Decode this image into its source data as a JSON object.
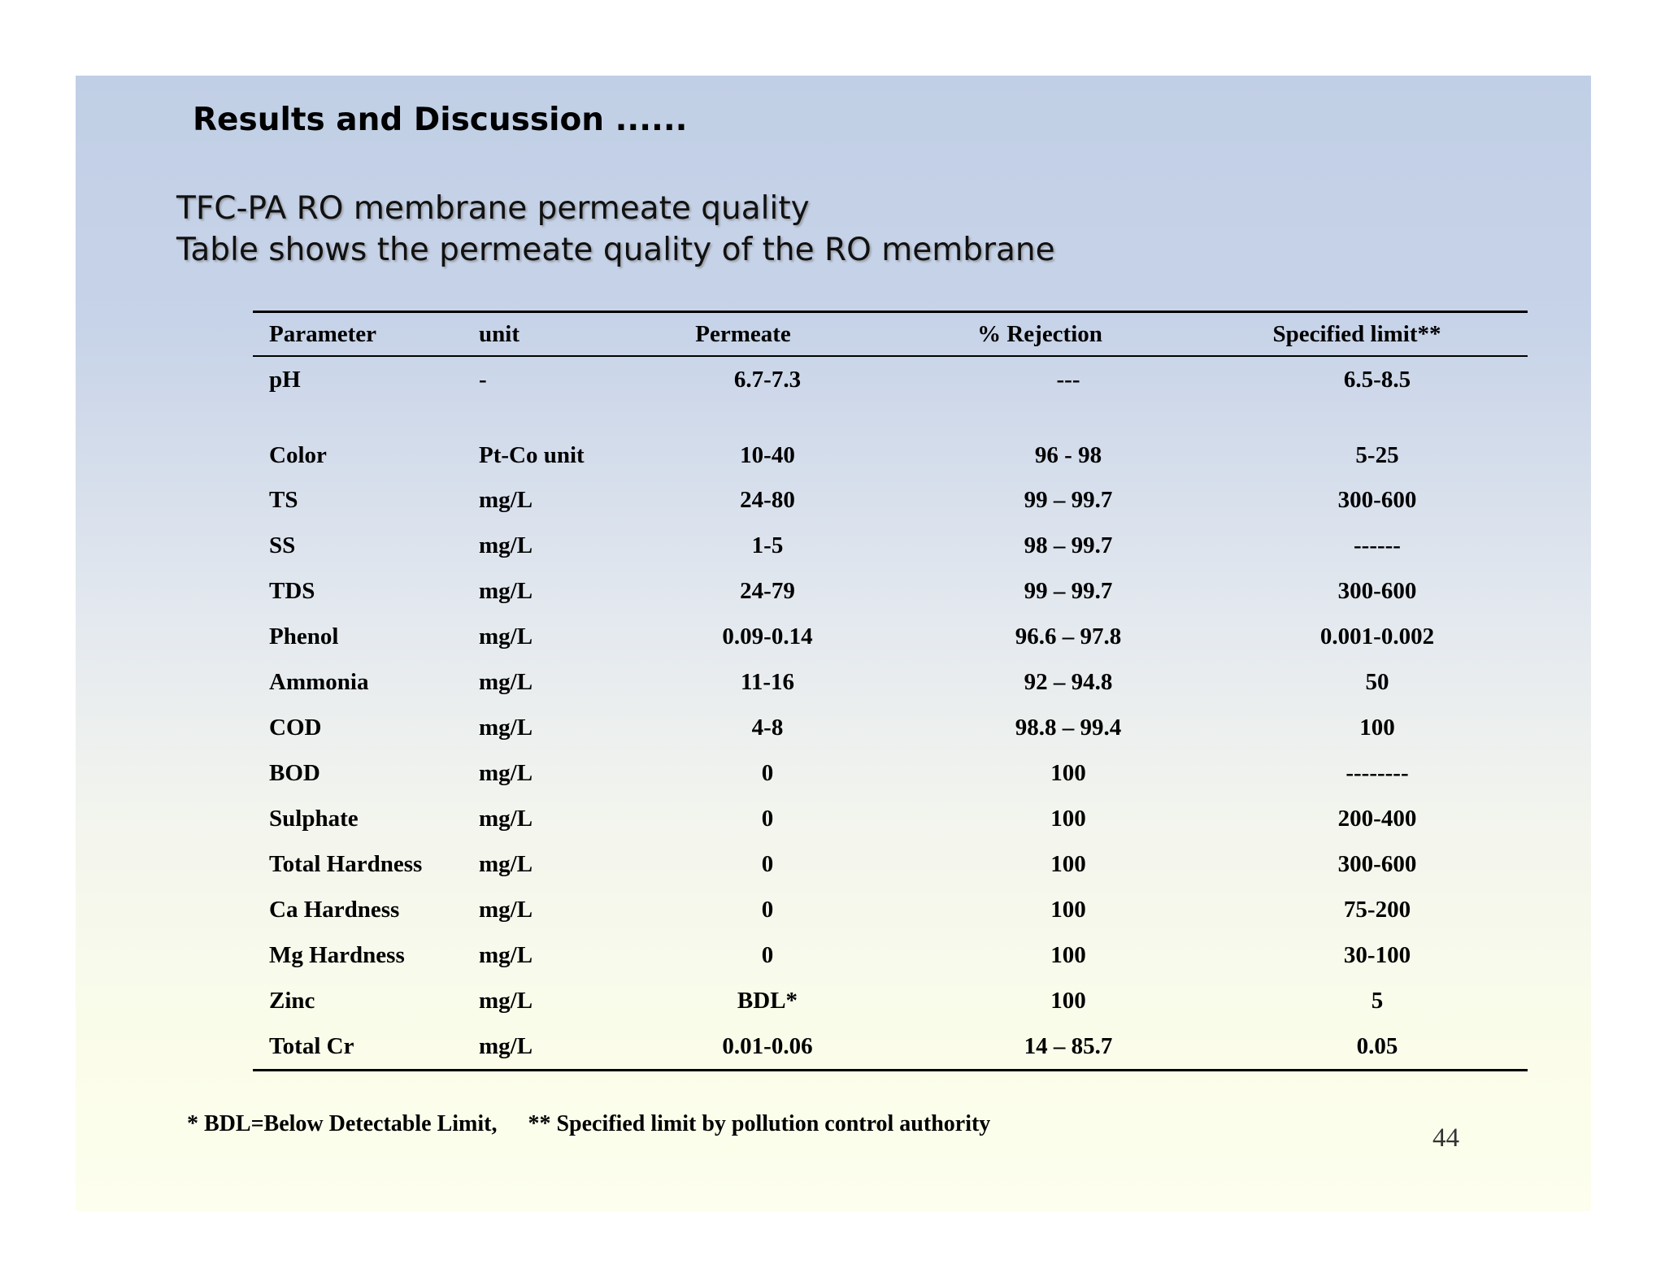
{
  "slide": {
    "title": "Results and Discussion ......",
    "subtitle_line1": "TFC-PA RO membrane permeate quality",
    "subtitle_line2": "Table shows the permeate quality of the RO membrane",
    "page_number": "44"
  },
  "table": {
    "headers": {
      "parameter": "Parameter",
      "unit": "unit",
      "permeate": "Permeate",
      "rejection": "% Rejection",
      "limit": "Specified limit**"
    },
    "rows": [
      {
        "parameter": "pH",
        "unit": "-",
        "permeate": "6.7-7.3",
        "rejection": "---",
        "limit": "6.5-8.5"
      },
      {
        "parameter": "Color",
        "unit": "Pt-Co unit",
        "permeate": "10-40",
        "rejection": "96 - 98",
        "limit": "5-25"
      },
      {
        "parameter": "TS",
        "unit": "mg/L",
        "permeate": "24-80",
        "rejection": "99 – 99.7",
        "limit": "300-600"
      },
      {
        "parameter": "SS",
        "unit": "mg/L",
        "permeate": "1-5",
        "rejection": "98 – 99.7",
        "limit": "------"
      },
      {
        "parameter": "TDS",
        "unit": "mg/L",
        "permeate": "24-79",
        "rejection": "99 – 99.7",
        "limit": "300-600"
      },
      {
        "parameter": "Phenol",
        "unit": "mg/L",
        "permeate": "0.09-0.14",
        "rejection": "96.6 – 97.8",
        "limit": "0.001-0.002"
      },
      {
        "parameter": "Ammonia",
        "unit": "mg/L",
        "permeate": "11-16",
        "rejection": "92 – 94.8",
        "limit": "50"
      },
      {
        "parameter": "COD",
        "unit": "mg/L",
        "permeate": "4-8",
        "rejection": "98.8 – 99.4",
        "limit": "100"
      },
      {
        "parameter": "BOD",
        "unit": "mg/L",
        "permeate": "0",
        "rejection": "100",
        "limit": "--------"
      },
      {
        "parameter": "Sulphate",
        "unit": "mg/L",
        "permeate": "0",
        "rejection": "100",
        "limit": "200-400"
      },
      {
        "parameter": "Total Hardness",
        "unit": "mg/L",
        "permeate": "0",
        "rejection": "100",
        "limit": "300-600"
      },
      {
        "parameter": "Ca Hardness",
        "unit": "mg/L",
        "permeate": "0",
        "rejection": "100",
        "limit": "75-200"
      },
      {
        "parameter": "Mg Hardness",
        "unit": "mg/L",
        "permeate": "0",
        "rejection": "100",
        "limit": "30-100"
      },
      {
        "parameter": "Zinc",
        "unit": "mg/L",
        "permeate": "BDL*",
        "rejection": "100",
        "limit": "5"
      },
      {
        "parameter": "Total Cr",
        "unit": "mg/L",
        "permeate": "0.01-0.06",
        "rejection": "14 – 85.7",
        "limit": "0.05"
      }
    ]
  },
  "footnotes": {
    "bdl": "* BDL=Below Detectable Limit,",
    "limit": "** Specified limit by pollution control authority"
  }
}
